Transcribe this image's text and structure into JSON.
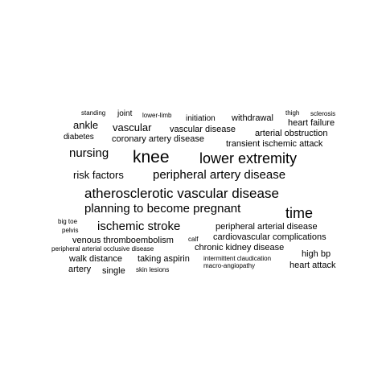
{
  "text_color": "#000000",
  "background_color": "#ffffff",
  "words": [
    {
      "text": "standing"
    },
    {
      "text": "joint"
    },
    {
      "text": "lower-limb"
    },
    {
      "text": "initiation"
    },
    {
      "text": "withdrawal"
    },
    {
      "text": "thigh"
    },
    {
      "text": "sclerosis"
    },
    {
      "text": "ankle"
    },
    {
      "text": "vascular"
    },
    {
      "text": "vascular disease"
    },
    {
      "text": "heart failure"
    },
    {
      "text": "diabetes"
    },
    {
      "text": "coronary artery disease"
    },
    {
      "text": "arterial obstruction"
    },
    {
      "text": "transient ischemic attack"
    },
    {
      "text": "nursing"
    },
    {
      "text": "knee"
    },
    {
      "text": "lower extremity"
    },
    {
      "text": "risk factors"
    },
    {
      "text": "peripheral artery disease"
    },
    {
      "text": "atherosclerotic vascular disease"
    },
    {
      "text": "planning to become pregnant"
    },
    {
      "text": "time"
    },
    {
      "text": "big toe"
    },
    {
      "text": "pelvis"
    },
    {
      "text": "ischemic stroke"
    },
    {
      "text": "peripheral arterial disease"
    },
    {
      "text": "venous thromboembolism"
    },
    {
      "text": "calf"
    },
    {
      "text": "cardiovascular complications"
    },
    {
      "text": "peripheral arterial occlusive disease"
    },
    {
      "text": "chronic kidney disease"
    },
    {
      "text": "high bp"
    },
    {
      "text": "walk distance"
    },
    {
      "text": "taking aspirin"
    },
    {
      "text": "intermittent claudication"
    },
    {
      "text": "macro-angiopathy"
    },
    {
      "text": "heart attack"
    },
    {
      "text": "artery"
    },
    {
      "text": "single"
    },
    {
      "text": "skin lesions"
    }
  ]
}
